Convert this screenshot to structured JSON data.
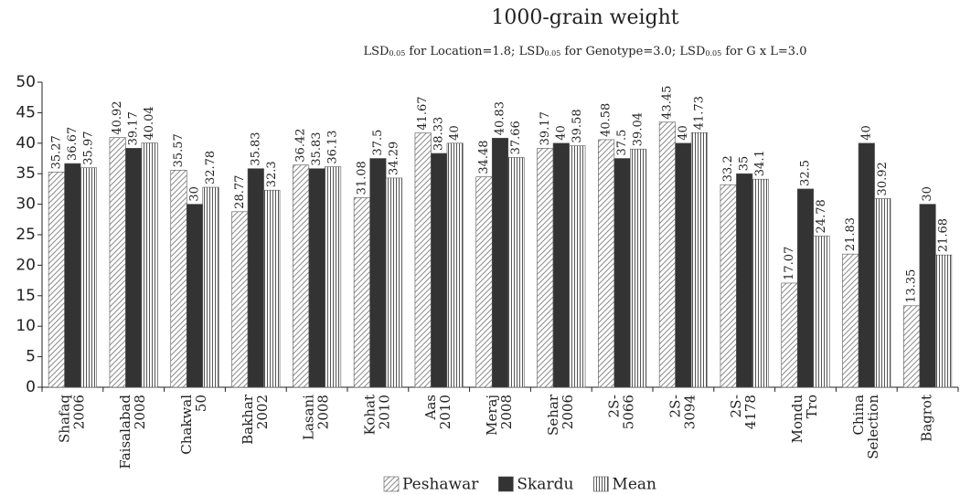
{
  "chart_data": {
    "type": "bar",
    "title": "1000-grain weight",
    "subtitle": [
      "LSD",
      "0.05",
      " for Location=1.8; ",
      "LSD",
      "0.05",
      " for Genotype=3.0; ",
      "LSD",
      "0.05",
      " for G x L=3.0"
    ],
    "categories": [
      [
        "Shafaq",
        "2006"
      ],
      [
        "Faisalabad",
        "2008"
      ],
      [
        "Chakwal",
        "50"
      ],
      [
        "Bakhar",
        "2002"
      ],
      [
        "Lasani",
        "2008"
      ],
      [
        "Kohat",
        "2010"
      ],
      [
        "Aas",
        "2010"
      ],
      [
        "Meraj",
        "2008"
      ],
      [
        "Sehar",
        "2006"
      ],
      [
        "2S-",
        "5066"
      ],
      [
        "2S-",
        "3094"
      ],
      [
        "2S-",
        "4178"
      ],
      [
        "Mondu",
        "Tro"
      ],
      [
        "China",
        "Selection"
      ],
      [
        "Bagrot"
      ]
    ],
    "series": [
      {
        "name": "Peshawar",
        "color": "#8c8c8c",
        "pattern": "diagonal",
        "values": [
          35.27,
          40.92,
          35.57,
          28.77,
          36.42,
          31.08,
          41.67,
          34.48,
          39.17,
          40.58,
          43.45,
          33.2,
          17.07,
          21.83,
          13.35
        ]
      },
      {
        "name": "Skardu",
        "color": "#333333",
        "pattern": "solid",
        "values": [
          36.67,
          39.17,
          30,
          35.83,
          35.83,
          37.5,
          38.33,
          40.83,
          40,
          37.5,
          40,
          35,
          32.5,
          40,
          30
        ]
      },
      {
        "name": "Mean",
        "color": "#555555",
        "pattern": "vertical",
        "values": [
          35.97,
          40.04,
          32.78,
          32.3,
          36.13,
          34.29,
          40,
          37.66,
          39.58,
          39.04,
          41.73,
          34.1,
          24.78,
          30.92,
          21.68
        ]
      }
    ],
    "ylim": [
      0,
      50
    ],
    "yticks": [
      0,
      5,
      10,
      15,
      20,
      25,
      30,
      35,
      40,
      45,
      50
    ],
    "legend": "bottom"
  }
}
